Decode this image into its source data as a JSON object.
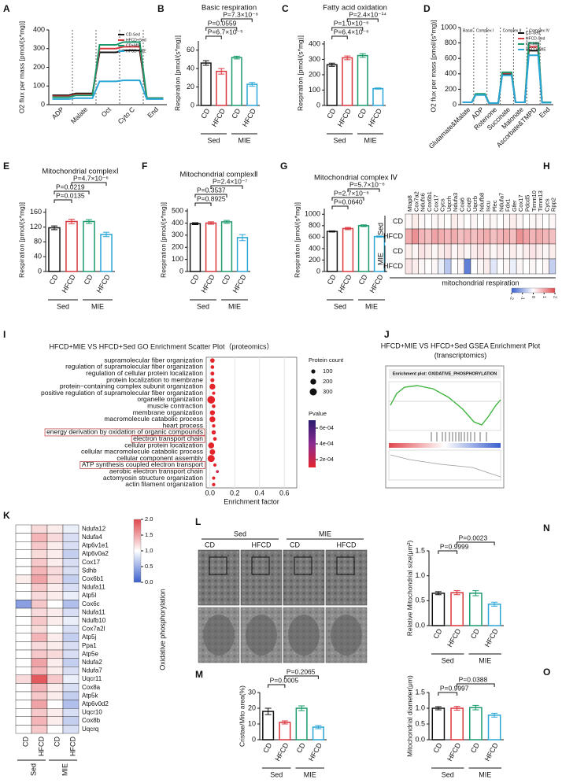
{
  "chart_data": [
    {
      "panel": "A",
      "type": "line",
      "ylabel": "O2 flux per mass [pmol/(s*mg)]",
      "categories": [
        "ADP",
        "Malate",
        "Oct",
        "Cyto C",
        "End"
      ],
      "ylim": [
        0,
        400
      ],
      "yticks": [
        0,
        100,
        200,
        300,
        400
      ],
      "series": [
        {
          "name": "CD-Sed",
          "color": "#111111",
          "values": [
            50,
            60,
            280,
            290,
            35
          ]
        },
        {
          "name": "HFCD+Sed",
          "color": "#d9363e",
          "values": [
            45,
            55,
            300,
            310,
            35
          ]
        },
        {
          "name": "CD+MIE",
          "color": "#1a9a6a",
          "values": [
            40,
            50,
            320,
            335,
            35
          ]
        },
        {
          "name": "HFCD+MIE",
          "color": "#2aa6d6",
          "values": [
            30,
            35,
            125,
            130,
            30
          ]
        }
      ]
    },
    {
      "panel": "B",
      "type": "bar",
      "title": "Basic respiration",
      "ylabel": "Respiration [pmol/(s*mg)]",
      "categories": [
        "CD",
        "HFCD",
        "CD",
        "HFCD"
      ],
      "groups": [
        "Sed",
        "MIE"
      ],
      "values": [
        46,
        37,
        52,
        23
      ],
      "errors": [
        2.5,
        3,
        1.5,
        2
      ],
      "colors": [
        "#111111",
        "#d9363e",
        "#1a9a6a",
        "#2aa6d6"
      ],
      "ylim": [
        0,
        70
      ],
      "yticks": [
        0,
        20,
        40,
        60
      ],
      "comparisons": [
        {
          "label": "P=6.7×10⁻⁵",
          "from": 0,
          "to": 1
        },
        {
          "label": "P=0.0559",
          "from": 0,
          "to": 2
        },
        {
          "label": "P=7.3×10⁻⁶",
          "from": 1,
          "to": 3
        }
      ]
    },
    {
      "panel": "C",
      "type": "bar",
      "title": "Fatty acid oxidation",
      "ylabel": "Respiration [pmol/(s*mg)]",
      "categories": [
        "CD",
        "HFCD",
        "CD",
        "HFCD"
      ],
      "groups": [
        "Sed",
        "MIE"
      ],
      "values": [
        265,
        310,
        325,
        110
      ],
      "errors": [
        10,
        12,
        12,
        4
      ],
      "colors": [
        "#111111",
        "#d9363e",
        "#1a9a6a",
        "#2aa6d6"
      ],
      "ylim": [
        0,
        420
      ],
      "yticks": [
        0,
        100,
        200,
        300,
        400
      ],
      "comparisons": [
        {
          "label": "P=6.4×10⁻⁶",
          "from": 0,
          "to": 1
        },
        {
          "label": "P=1.0×10⁻⁶",
          "from": 0,
          "to": 2
        },
        {
          "label": "P=2.4×10⁻¹⁴",
          "from": 1,
          "to": 3
        }
      ]
    },
    {
      "panel": "D",
      "type": "line",
      "ylabel": "O2 flux per mass [pmol/(s*mg)]",
      "categories": [
        "Glutamate&Malate",
        "ADP",
        "Rotenone",
        "Succinate",
        "Malonate",
        "Ascorbate&TMPD",
        "End"
      ],
      "stages": [
        "Basal",
        "Complex I",
        "Complex II",
        "Complex IV"
      ],
      "ylim": [
        0,
        1000
      ],
      "yticks": [
        0,
        200,
        400,
        600,
        800,
        1000
      ],
      "series": [
        {
          "name": "CD-Sed",
          "color": "#111111",
          "values": [
            30,
            130,
            20,
            400,
            30,
            700,
            30
          ]
        },
        {
          "name": "HFCD-Sed",
          "color": "#d9363e",
          "values": [
            30,
            135,
            20,
            410,
            30,
            750,
            30
          ]
        },
        {
          "name": "CD-MIE",
          "color": "#1a9a6a",
          "values": [
            30,
            140,
            20,
            420,
            30,
            800,
            30
          ]
        },
        {
          "name": "HFCD+MIE",
          "color": "#2aa6d6",
          "values": [
            30,
            125,
            20,
            380,
            30,
            640,
            25
          ]
        }
      ]
    },
    {
      "panel": "E",
      "type": "bar",
      "title": "Mitochondrial complexⅠ",
      "ylabel": "Respiration [pmol/(s*mg)]",
      "categories": [
        "CD",
        "HFCD",
        "CD",
        "HFCD"
      ],
      "groups": [
        "Sed",
        "MIE"
      ],
      "values": [
        118,
        135,
        135,
        100
      ],
      "errors": [
        5,
        6,
        5,
        6
      ],
      "colors": [
        "#111111",
        "#d9363e",
        "#1a9a6a",
        "#2aa6d6"
      ],
      "ylim": [
        0,
        170
      ],
      "yticks": [
        0,
        40,
        80,
        120,
        160
      ],
      "comparisons": [
        {
          "label": "P=0.0135",
          "from": 0,
          "to": 1
        },
        {
          "label": "P=0.0219",
          "from": 0,
          "to": 2
        },
        {
          "label": "P=4.7×10⁻⁶",
          "from": 1,
          "to": 3
        }
      ]
    },
    {
      "panel": "F",
      "type": "bar",
      "title": "Mitochondrial complexⅡ",
      "ylabel": "Respiration [pmol/(s*mg)]",
      "categories": [
        "CD",
        "HFCD",
        "CD",
        "HFCD"
      ],
      "groups": [
        "Sed",
        "MIE"
      ],
      "values": [
        395,
        400,
        410,
        280
      ],
      "errors": [
        8,
        10,
        12,
        25
      ],
      "colors": [
        "#111111",
        "#d9363e",
        "#1a9a6a",
        "#2aa6d6"
      ],
      "ylim": [
        0,
        520
      ],
      "yticks": [
        0,
        100,
        200,
        300,
        400,
        500
      ],
      "comparisons": [
        {
          "label": "P=0.8925",
          "from": 0,
          "to": 1
        },
        {
          "label": "P=0.3537",
          "from": 0,
          "to": 2
        },
        {
          "label": "P=2.4×10⁻⁷",
          "from": 1,
          "to": 3
        }
      ]
    },
    {
      "panel": "G",
      "type": "bar",
      "title": "Mitochondrial complex Ⅳ",
      "ylabel": "Respiration [pmol/(s*mg)]",
      "categories": [
        "CD",
        "HFCD",
        "CD",
        "HFCD"
      ],
      "groups": [
        "Sed",
        "MIE"
      ],
      "values": [
        700,
        750,
        800,
        610
      ],
      "errors": [
        10,
        20,
        15,
        10
      ],
      "colors": [
        "#111111",
        "#d9363e",
        "#1a9a6a",
        "#2aa6d6"
      ],
      "ylim": [
        0,
        1100
      ],
      "yticks": [
        0,
        200,
        400,
        600,
        800,
        1000
      ],
      "comparisons": [
        {
          "label": "P=0.0640",
          "from": 0,
          "to": 1
        },
        {
          "label": "P=2.7×10⁻⁶",
          "from": 0,
          "to": 2
        },
        {
          "label": "P=5.7×10⁻⁶",
          "from": 1,
          "to": 3
        }
      ]
    },
    {
      "panel": "H",
      "type": "heatmap",
      "xlabel": "mitochondrial respiration",
      "row_labels": [
        "CD",
        "HFCD",
        "CD",
        "HFCD"
      ],
      "row_groups": [
        "Sed",
        "MIE"
      ],
      "column_labels": [
        "Mtap8",
        "Cox7a2",
        "Ndufs6",
        "Cox6b1",
        "Cox17",
        "Cycs",
        "Uqcrh",
        "Ndufa3",
        "Coa6",
        "Coq9",
        "Uqcrb",
        "Ndufb8",
        "Iscu",
        "Plec",
        "Ndufa7",
        "Fdx1",
        "Gfer",
        "Cox17",
        "Pdcd5",
        "Timm10",
        "Timm13",
        "Cycs",
        "Rpp2"
      ],
      "values": [
        [
          0.1,
          0.2,
          0.1,
          0.0,
          0.1,
          0.1,
          0.0,
          0.2,
          0.1,
          0.0,
          0.1,
          0.0,
          0.1,
          0.1,
          0.0,
          0.1,
          0.2,
          0.1,
          0.0,
          0.1,
          0.1,
          0.0,
          0.1
        ],
        [
          0.9,
          1.2,
          0.8,
          0.7,
          1.0,
          0.9,
          0.8,
          0.9,
          0.7,
          0.8,
          0.7,
          0.8,
          0.9,
          0.7,
          0.8,
          0.9,
          0.7,
          1.2,
          1.0,
          0.8,
          0.9,
          0.8,
          0.7
        ],
        [
          0.2,
          0.1,
          0.3,
          0.2,
          0.1,
          0.2,
          0.3,
          0.1,
          0.2,
          0.1,
          0.2,
          0.3,
          0.2,
          0.1,
          0.2,
          0.1,
          0.2,
          0.1,
          0.2,
          0.3,
          0.2,
          0.1,
          0.2
        ],
        [
          0.3,
          0.2,
          0.1,
          0.0,
          0.1,
          -0.2,
          -0.7,
          0.0,
          0.1,
          -1.6,
          0.0,
          0.1,
          0.2,
          -0.3,
          0.0,
          0.1,
          -0.2,
          0.1,
          0.0,
          0.1,
          0.0,
          0.1,
          -0.6
        ]
      ],
      "clim": [
        -2,
        2
      ],
      "colors": [
        "#3a5fcd",
        "#ffffff",
        "#e0474c"
      ],
      "cticks": [
        -2,
        -1,
        0,
        1,
        2
      ]
    },
    {
      "panel": "I",
      "type": "scatter",
      "title": "HFCD+MIE VS HFCD+Sed GO Enrichment Scatter Plot（proteomics）",
      "xlabel": "Enrichment factor",
      "terms": [
        "supramolecular fiber organization",
        "regulation of supramolecular fiber organization",
        "regulation of cellular protein localization",
        "protein localization to membrane",
        "protein−containing complex subunit organization",
        "positive regulation of supramolecular fiber organization",
        "organelle organization",
        "muscle contraction",
        "membrane organization",
        "macromolecule catabolic process",
        "heart process",
        "energy derivation by oxidation of organic compounds",
        "electron transport chain",
        "cellular protein localization",
        "cellular macromolecule catabolic process",
        "cellular component assembly",
        "ATP synthesis coupled electron transport",
        "aerobic electron transport chain",
        "actomyosin structure organization",
        "actin filament organization"
      ],
      "highlight": [
        11,
        12,
        16
      ],
      "enrichment": [
        0.02,
        0.02,
        0.02,
        0.02,
        0.02,
        0.03,
        0.01,
        0.03,
        0.02,
        0.02,
        0.03,
        0.03,
        0.04,
        0.01,
        0.02,
        0.01,
        0.04,
        0.06,
        0.03,
        0.03
      ],
      "count": [
        120,
        80,
        90,
        100,
        200,
        60,
        350,
        80,
        150,
        200,
        70,
        110,
        80,
        220,
        180,
        300,
        60,
        50,
        60,
        70
      ],
      "pvalue": [
        0.0001,
        0.0001,
        0.0001,
        0.0001,
        0.0001,
        0.0001,
        0.0001,
        0.0001,
        0.0001,
        0.0001,
        0.0001,
        0.0001,
        0.0001,
        0.0001,
        0.0001,
        0.0001,
        0.0001,
        0.0002,
        0.0001,
        0.0001
      ],
      "xlim": [
        -0.03,
        0.7
      ],
      "xticks": [
        {
          "value": 0,
          "label": "0.0"
        },
        {
          "value": 0.2,
          "label": "0.2"
        },
        {
          "value": 0.4,
          "label": "0.4"
        },
        {
          "value": 0.6,
          "label": "0.6"
        }
      ],
      "size_title": "Protein count",
      "size_ticks": [
        100,
        200,
        300
      ],
      "color_title": "Pvalue",
      "plim": [
        0.0001,
        0.0007
      ],
      "pvalue_colors": [
        "#e3242b",
        "#8b2a8f",
        "#2a1b6e"
      ],
      "pticks": [
        {
          "value": 0.0006,
          "label": "6e-04"
        },
        {
          "value": 0.0004,
          "label": "4e-04"
        },
        {
          "value": 0.0002,
          "label": "2e-04"
        }
      ]
    },
    {
      "panel": "K",
      "type": "heatmap",
      "side_label": "Oxidative phosphorylation",
      "row_labels": [
        "Ndufa12",
        "Ndufa4",
        "Atp6v1e1",
        "Atp6v0a2",
        "Cox17",
        "Sdhb",
        "Cox6b1",
        "Ndufa11",
        "Atp5l",
        "Cox6c",
        "Ndufa11",
        "Ndufb10",
        "Cox7a2l",
        "Atp5j",
        "Ppa1",
        "Atp5e",
        "Ndufa2",
        "Ndufa7",
        "Uqcr11",
        "Cox8a",
        "Atp5k",
        "Atp6v0d2",
        "Uqcr10",
        "Cox8b",
        "Uqcrq"
      ],
      "column_labels": [
        "CD",
        "HFCD",
        "CD",
        "HFCD"
      ],
      "column_groups": [
        "Sed",
        "MIE"
      ],
      "values": [
        [
          1.0,
          1.2,
          1.1,
          0.9
        ],
        [
          1.0,
          1.4,
          1.2,
          0.8
        ],
        [
          1.0,
          1.3,
          1.1,
          0.8
        ],
        [
          1.0,
          1.2,
          1.1,
          0.7
        ],
        [
          1.0,
          1.3,
          1.1,
          0.8
        ],
        [
          1.0,
          1.4,
          1.2,
          0.8
        ],
        [
          1.1,
          1.5,
          1.2,
          0.7
        ],
        [
          1.0,
          1.3,
          1.1,
          0.8
        ],
        [
          1.0,
          1.2,
          1.1,
          0.9
        ],
        [
          0.4,
          1.3,
          1.0,
          0.6
        ],
        [
          1.0,
          1.2,
          1.1,
          0.8
        ],
        [
          1.0,
          1.3,
          1.1,
          0.9
        ],
        [
          1.0,
          1.2,
          1.0,
          0.8
        ],
        [
          1.0,
          1.4,
          1.1,
          0.7
        ],
        [
          1.0,
          1.2,
          1.1,
          0.8
        ],
        [
          1.0,
          1.3,
          1.2,
          0.8
        ],
        [
          1.0,
          1.5,
          1.1,
          0.7
        ],
        [
          1.0,
          1.4,
          1.1,
          0.8
        ],
        [
          1.2,
          1.9,
          1.3,
          0.9
        ],
        [
          1.0,
          1.4,
          1.1,
          0.8
        ],
        [
          1.0,
          1.3,
          1.1,
          0.7
        ],
        [
          1.0,
          1.5,
          1.0,
          0.6
        ],
        [
          1.0,
          1.3,
          1.1,
          0.8
        ],
        [
          1.0,
          1.4,
          1.1,
          0.7
        ],
        [
          1.0,
          1.3,
          1.0,
          0.8
        ]
      ],
      "clim": [
        0,
        2
      ],
      "colors": [
        "#3a5fcd",
        "#ffffff",
        "#e0474c"
      ],
      "cticks": [
        {
          "value": 2,
          "label": "2.0"
        },
        {
          "value": 1.5,
          "label": "1.5"
        },
        {
          "value": 1,
          "label": "1.0"
        },
        {
          "value": 0.5,
          "label": "0.5"
        },
        {
          "value": 0,
          "label": "0.0"
        }
      ]
    },
    {
      "panel": "M",
      "type": "bar",
      "ylabel": "Cristae/Mito area(%)",
      "categories": [
        "CD",
        "HFCD",
        "CD",
        "HFCD"
      ],
      "groups": [
        "Sed",
        "MIE"
      ],
      "values": [
        18,
        11,
        20,
        8
      ],
      "errors": [
        2,
        1,
        1.5,
        1
      ],
      "colors": [
        "#111111",
        "#d9363e",
        "#1a9a6a",
        "#2aa6d6"
      ],
      "ylim": [
        0,
        30
      ],
      "yticks": [
        0,
        10,
        20,
        30
      ],
      "comparisons": [
        {
          "label": "P=0.0005",
          "from": 0,
          "to": 1
        },
        {
          "label": "P=0.2065",
          "from": 1,
          "to": 3
        }
      ]
    },
    {
      "panel": "N",
      "type": "bar",
      "ylabel": "Relative Mitochondrial size(μm²)",
      "categories": [
        "CD",
        "HFCD",
        "CD",
        "HFCD"
      ],
      "groups": [
        "Sed",
        "MIE"
      ],
      "values": [
        0.65,
        0.66,
        0.65,
        0.43
      ],
      "errors": [
        0.03,
        0.04,
        0.05,
        0.04
      ],
      "colors": [
        "#111111",
        "#d9363e",
        "#1a9a6a",
        "#2aa6d6"
      ],
      "ylim": [
        0,
        1.5
      ],
      "yticks": [
        {
          "value": 0,
          "label": "0.0"
        },
        {
          "value": 0.5,
          "label": "0.5"
        },
        {
          "value": 1,
          "label": "1.0"
        },
        {
          "value": 1.5,
          "label": "1.5"
        }
      ],
      "comparisons": [
        {
          "label": "P=0.9999",
          "from": 0,
          "to": 1
        },
        {
          "label": "P=0.0023",
          "from": 1,
          "to": 3
        }
      ]
    },
    {
      "panel": "O",
      "type": "bar",
      "ylabel": "Mitochondrial diameter(μm)",
      "categories": [
        "CD",
        "HFCD",
        "CD",
        "HFCD"
      ],
      "groups": [
        "Sed",
        "MIE"
      ],
      "values": [
        1.0,
        1.0,
        1.02,
        0.78
      ],
      "errors": [
        0.05,
        0.06,
        0.07,
        0.06
      ],
      "colors": [
        "#111111",
        "#d9363e",
        "#1a9a6a",
        "#2aa6d6"
      ],
      "ylim": [
        0,
        1.5
      ],
      "yticks": [
        {
          "value": 0,
          "label": "0.0"
        },
        {
          "value": 0.5,
          "label": "0.5"
        },
        {
          "value": 1,
          "label": "1.0"
        },
        {
          "value": 1.5,
          "label": "1.5"
        }
      ],
      "comparisons": [
        {
          "label": "P=0.9997",
          "from": 0,
          "to": 1
        },
        {
          "label": "P=0.0388",
          "from": 1,
          "to": 3
        }
      ]
    }
  ],
  "gsea": {
    "panel": "J",
    "title": "HFCD+MIE VS HFCD+Sed GSEA Enrichment Plot",
    "subtitle": "(transcriptomics)",
    "plot_title": "Enrichment plot: OXIDATIVE_PHOSPHORYLATION"
  },
  "micrographs": {
    "panel": "L",
    "groups": [
      "Sed",
      "MIE"
    ],
    "labels": [
      "CD",
      "HFCD",
      "CD",
      "HFCD"
    ]
  }
}
